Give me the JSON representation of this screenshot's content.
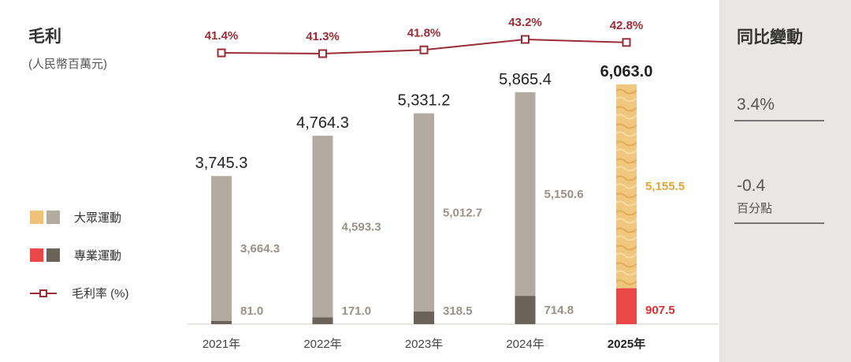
{
  "title": "毛利",
  "subtitle": "(人民幣百萬元)",
  "legend": {
    "mass": "大眾運動",
    "pro": "專業運動",
    "margin": "毛利率 (%)"
  },
  "colors": {
    "mass_hist": "#b4aba0",
    "mass_current": "#efc27a",
    "pro_hist": "#6b6259",
    "pro_current": "#ea4848",
    "margin_line": "#9b2c36",
    "text_grey": "#9a9189",
    "text_mass_current": "#e8a43a",
    "text_pro_current": "#e02f2f"
  },
  "side": {
    "header": "同比變動",
    "yoy_total": "3.4%",
    "margin_change": "-0.4",
    "margin_unit": "百分點"
  },
  "chart_data": {
    "type": "bar",
    "stacked": true,
    "title": "毛利",
    "ylabel": "(人民幣百萬元)",
    "categories": [
      "2021年",
      "2022年",
      "2023年",
      "2024年",
      "2025年"
    ],
    "highlight_category": "2025年",
    "series": [
      {
        "name": "專業運動",
        "values": [
          81.0,
          171.0,
          318.5,
          714.8,
          907.5
        ],
        "labels": [
          "81.0",
          "171.0",
          "318.5",
          "714.8",
          "907.5"
        ]
      },
      {
        "name": "大眾運動",
        "values": [
          3664.3,
          4593.3,
          5012.7,
          5150.6,
          5155.5
        ],
        "labels": [
          "3,664.3",
          "4,593.3",
          "5,012.7",
          "5,150.6",
          "5,155.5"
        ]
      }
    ],
    "totals": [
      3745.3,
      4764.3,
      5331.2,
      5865.4,
      6063.0
    ],
    "total_labels": [
      "3,745.3",
      "4,764.3",
      "5,331.2",
      "5,865.4",
      "6,063.0"
    ],
    "line": {
      "name": "毛利率 (%)",
      "values": [
        41.4,
        41.3,
        41.8,
        43.2,
        42.8
      ],
      "labels": [
        "41.4%",
        "41.3%",
        "41.8%",
        "43.2%",
        "42.8%"
      ]
    },
    "ylim": [
      0,
      6063.0
    ]
  }
}
